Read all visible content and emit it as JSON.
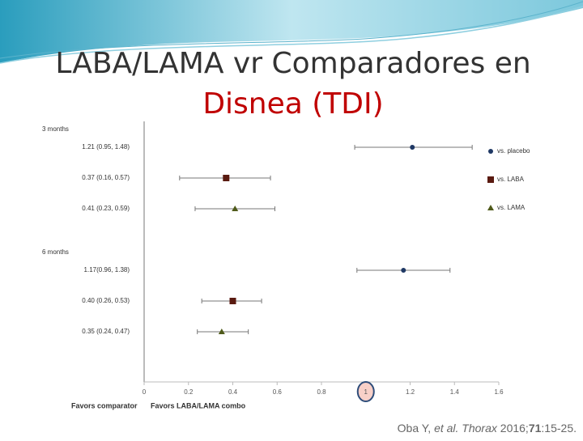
{
  "slide": {
    "title": [
      "LABA/LAMA vr Comparadores en",
      "Disnea (TDI)"
    ],
    "citation": [
      "Oba Y, ",
      "et al. Thorax",
      " 2016;",
      "71",
      ":15-25."
    ]
  },
  "chart_data": {
    "type": "forest",
    "categories": [
      "3 months",
      "6 months"
    ],
    "series": [
      {
        "name": "vs. placebo",
        "color": "#1f3864",
        "marker": "circle",
        "values": [
          1.21,
          1.17
        ],
        "lower": [
          0.95,
          0.96
        ],
        "upper": [
          1.48,
          1.38
        ],
        "value_labels": [
          "1.21 (0.95, 1.48)",
          "1.17(0.96, 1.38)"
        ]
      },
      {
        "name": "vs. LABA",
        "color": "#5a1a10",
        "marker": "square",
        "values": [
          0.37,
          0.4
        ],
        "lower": [
          0.16,
          0.26
        ],
        "upper": [
          0.57,
          0.53
        ],
        "value_labels": [
          "0.37 (0.16, 0.57)",
          "0.40 (0.26, 0.53)"
        ]
      },
      {
        "name": "vs. LAMA",
        "color": "#4f5a1a",
        "marker": "triangle",
        "values": [
          0.41,
          0.35
        ],
        "lower": [
          0.23,
          0.24
        ],
        "upper": [
          0.59,
          0.47
        ],
        "value_labels": [
          "0.41 (0.23, 0.59)",
          "0.35 (0.24, 0.47)"
        ]
      }
    ],
    "xlim": [
      0,
      1.6
    ],
    "xticks": [
      0,
      0.2,
      0.4,
      0.6,
      0.8,
      1,
      1.2,
      1.4,
      1.6
    ],
    "highlighted_xtick": 1,
    "xlabel_left": "Favors comparator",
    "xlabel_right": "Favors LABA/LAMA combo"
  }
}
